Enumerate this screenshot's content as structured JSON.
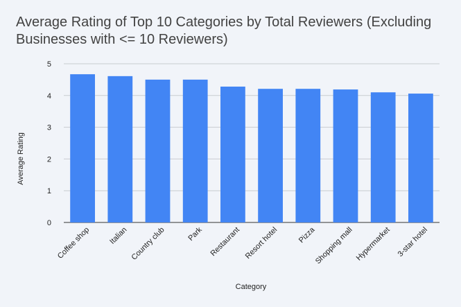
{
  "chart_data": {
    "type": "bar",
    "title": "Average Rating of Top 10 Categories by Total Reviewers (Excluding Businesses with <= 10 Reviewers)",
    "xlabel": "Category",
    "ylabel": "Average Rating",
    "ylim": [
      0,
      5
    ],
    "yticks": [
      0,
      1,
      2,
      3,
      4,
      5
    ],
    "grid": true,
    "legend": "none",
    "bar_color": "#4285f4",
    "categories": [
      "Coffee shop",
      "Italian",
      "Country club",
      "Park",
      "Restaurant",
      "Resort hotel",
      "Pizza",
      "Shopping mall",
      "Hypermarket",
      "3-star hotel"
    ],
    "values": [
      4.67,
      4.61,
      4.5,
      4.5,
      4.28,
      4.21,
      4.21,
      4.19,
      4.1,
      4.06
    ]
  }
}
